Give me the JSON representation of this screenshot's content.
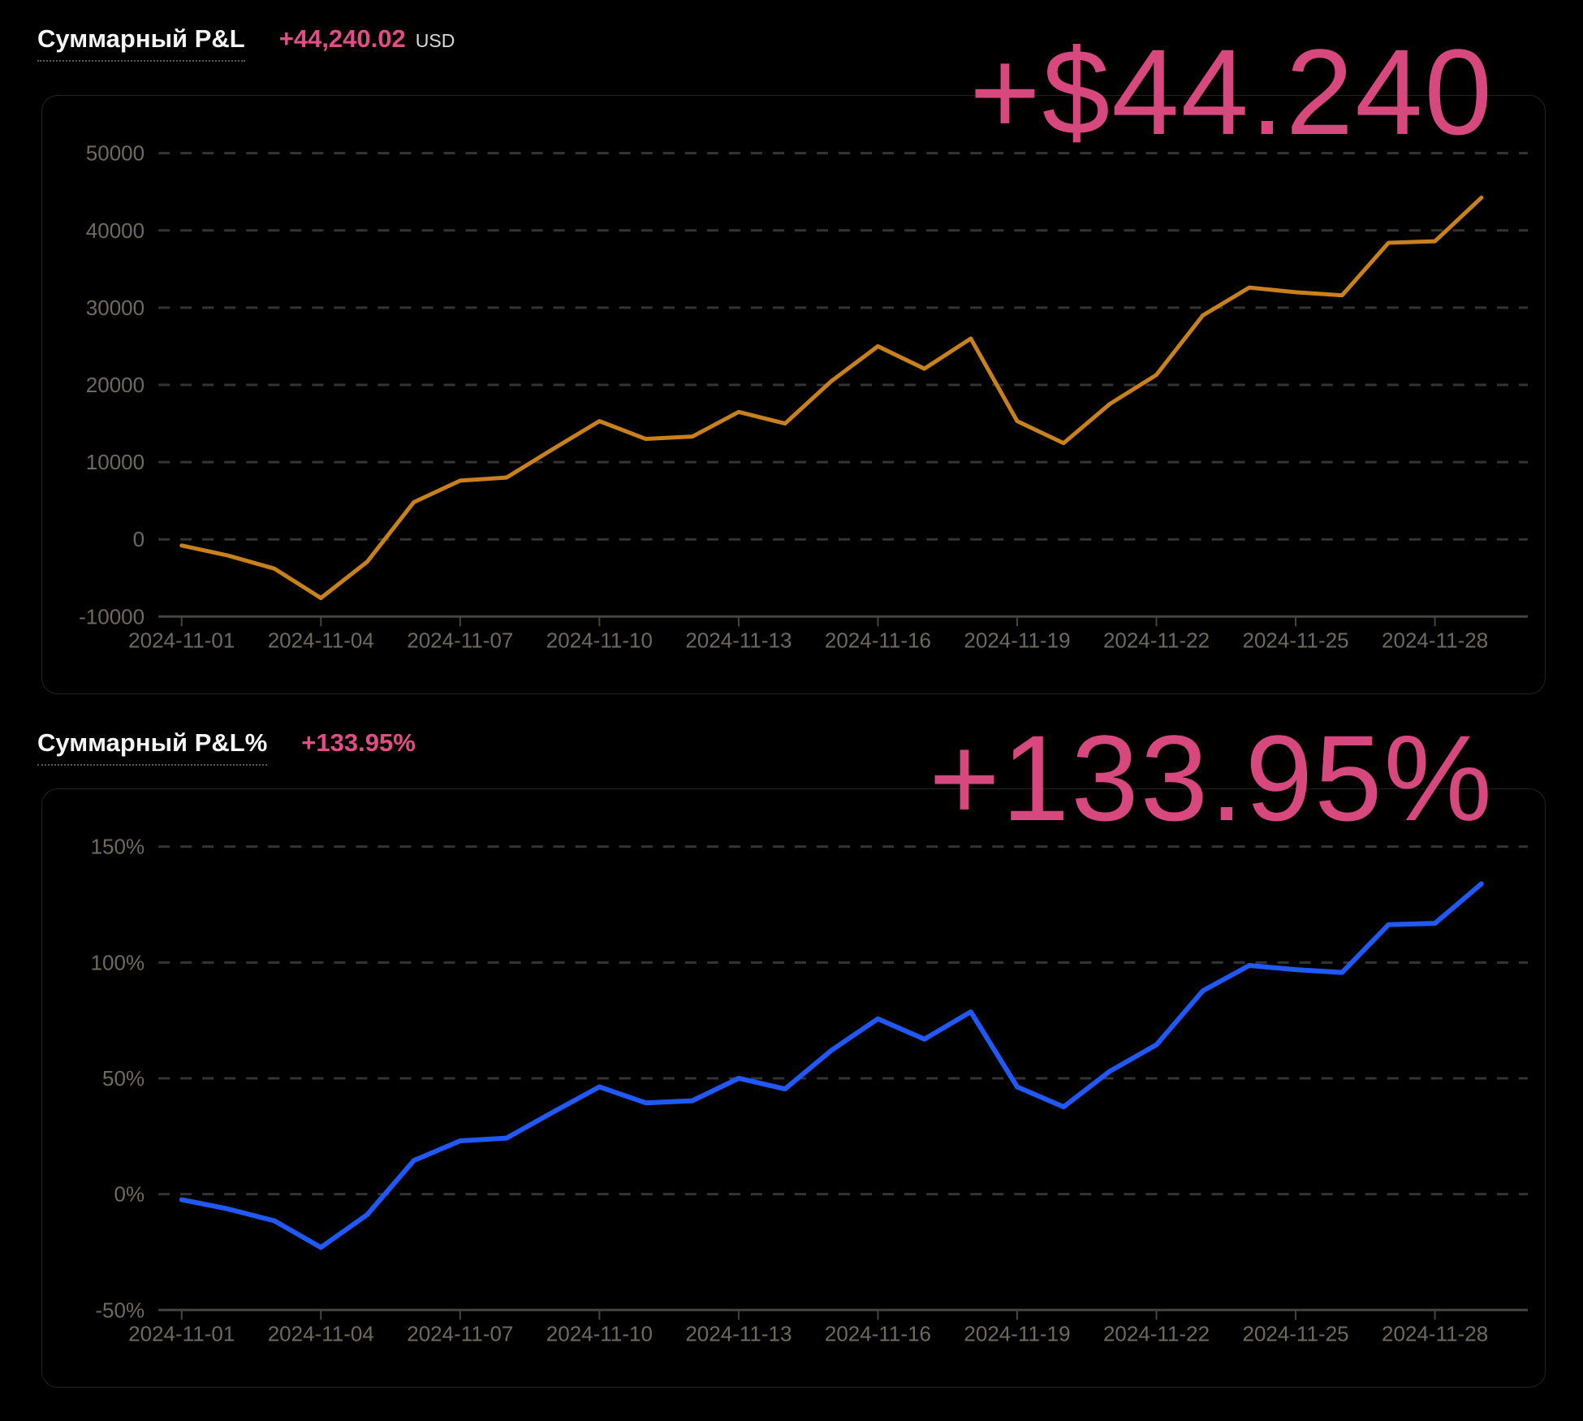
{
  "colors": {
    "background": "#000000",
    "accent_pink_big": "#d7487e",
    "accent_pink_value": "#e24d86",
    "orange_line": "#c8811c",
    "blue_line": "#2059f7",
    "grid": "#343434",
    "axis": "#454540",
    "tick_label": "#6f695e",
    "title": "#f5f5f5",
    "unit": "#d9d9d9"
  },
  "sections": [
    {
      "title": "Суммарный P&L",
      "value": "+44,240.02",
      "unit": "USD",
      "big_text": "+$44.240"
    },
    {
      "title": "Суммарный P&L%",
      "value": "+133.95%",
      "unit": "",
      "big_text": "+133.95%"
    }
  ],
  "chart_data": [
    {
      "type": "line",
      "title": "Суммарный P&L",
      "ylabel": "USD",
      "line_color": "#c8811c",
      "line_width": 5,
      "grid": "dashed",
      "legend_position": "none",
      "ylim": [
        -10000,
        55000
      ],
      "x": [
        "2024-11-01",
        "2024-11-02",
        "2024-11-03",
        "2024-11-04",
        "2024-11-05",
        "2024-11-06",
        "2024-11-07",
        "2024-11-08",
        "2024-11-09",
        "2024-11-10",
        "2024-11-11",
        "2024-11-12",
        "2024-11-13",
        "2024-11-14",
        "2024-11-15",
        "2024-11-16",
        "2024-11-17",
        "2024-11-18",
        "2024-11-19",
        "2024-11-20",
        "2024-11-21",
        "2024-11-22",
        "2024-11-23",
        "2024-11-24",
        "2024-11-25",
        "2024-11-26",
        "2024-11-27",
        "2024-11-28",
        "2024-11-29"
      ],
      "values": [
        -800,
        -2100,
        -3800,
        -7600,
        -2900,
        4800,
        7600,
        8000,
        11700,
        15300,
        13000,
        13300,
        16500,
        15000,
        20500,
        25000,
        22100,
        26000,
        15300,
        12450,
        17550,
        21300,
        29000,
        32600,
        32000,
        31600,
        38400,
        38600,
        44240
      ],
      "y_ticks": [
        {
          "label": "50000",
          "value": 50000
        },
        {
          "label": "40000",
          "value": 40000
        },
        {
          "label": "30000",
          "value": 30000
        },
        {
          "label": "20000",
          "value": 20000
        },
        {
          "label": "10000",
          "value": 10000
        },
        {
          "label": "0",
          "value": 0
        }
      ],
      "axis": {
        "label": "-10000",
        "value": -10000
      },
      "x_ticks": [
        {
          "index": 0,
          "label": "2024-11-01"
        },
        {
          "index": 3,
          "label": "2024-11-04"
        },
        {
          "index": 6,
          "label": "2024-11-07"
        },
        {
          "index": 9,
          "label": "2024-11-10"
        },
        {
          "index": 12,
          "label": "2024-11-13"
        },
        {
          "index": 15,
          "label": "2024-11-16"
        },
        {
          "index": 18,
          "label": "2024-11-19"
        },
        {
          "index": 21,
          "label": "2024-11-22"
        },
        {
          "index": 24,
          "label": "2024-11-25"
        },
        {
          "index": 27,
          "label": "2024-11-28"
        }
      ]
    },
    {
      "type": "line",
      "title": "Суммарный P&L%",
      "ylabel": "%",
      "line_color": "#2059f7",
      "line_width": 6,
      "grid": "dashed",
      "legend_position": "none",
      "ylim": [
        -50,
        165
      ],
      "x": [
        "2024-11-01",
        "2024-11-02",
        "2024-11-03",
        "2024-11-04",
        "2024-11-05",
        "2024-11-06",
        "2024-11-07",
        "2024-11-08",
        "2024-11-09",
        "2024-11-10",
        "2024-11-11",
        "2024-11-12",
        "2024-11-13",
        "2024-11-14",
        "2024-11-15",
        "2024-11-16",
        "2024-11-17",
        "2024-11-18",
        "2024-11-19",
        "2024-11-20",
        "2024-11-21",
        "2024-11-22",
        "2024-11-23",
        "2024-11-24",
        "2024-11-25",
        "2024-11-26",
        "2024-11-27",
        "2024-11-28",
        "2024-11-29"
      ],
      "values": [
        -2.4,
        -6.4,
        -11.5,
        -23.0,
        -8.8,
        14.5,
        23.0,
        24.2,
        35.4,
        46.3,
        39.4,
        40.3,
        50.0,
        45.4,
        62.1,
        75.7,
        66.9,
        78.7,
        46.3,
        37.7,
        53.1,
        64.5,
        87.8,
        98.7,
        96.9,
        95.7,
        116.3,
        116.9,
        133.95
      ],
      "y_ticks": [
        {
          "label": "150%",
          "value": 150
        },
        {
          "label": "100%",
          "value": 100
        },
        {
          "label": "50%",
          "value": 50
        },
        {
          "label": "0%",
          "value": 0
        }
      ],
      "axis": {
        "label": "-50%",
        "value": -50
      },
      "x_ticks": [
        {
          "index": 0,
          "label": "2024-11-01"
        },
        {
          "index": 3,
          "label": "2024-11-04"
        },
        {
          "index": 6,
          "label": "2024-11-07"
        },
        {
          "index": 9,
          "label": "2024-11-10"
        },
        {
          "index": 12,
          "label": "2024-11-13"
        },
        {
          "index": 15,
          "label": "2024-11-16"
        },
        {
          "index": 18,
          "label": "2024-11-19"
        },
        {
          "index": 21,
          "label": "2024-11-22"
        },
        {
          "index": 24,
          "label": "2024-11-25"
        },
        {
          "index": 27,
          "label": "2024-11-28"
        }
      ]
    }
  ]
}
